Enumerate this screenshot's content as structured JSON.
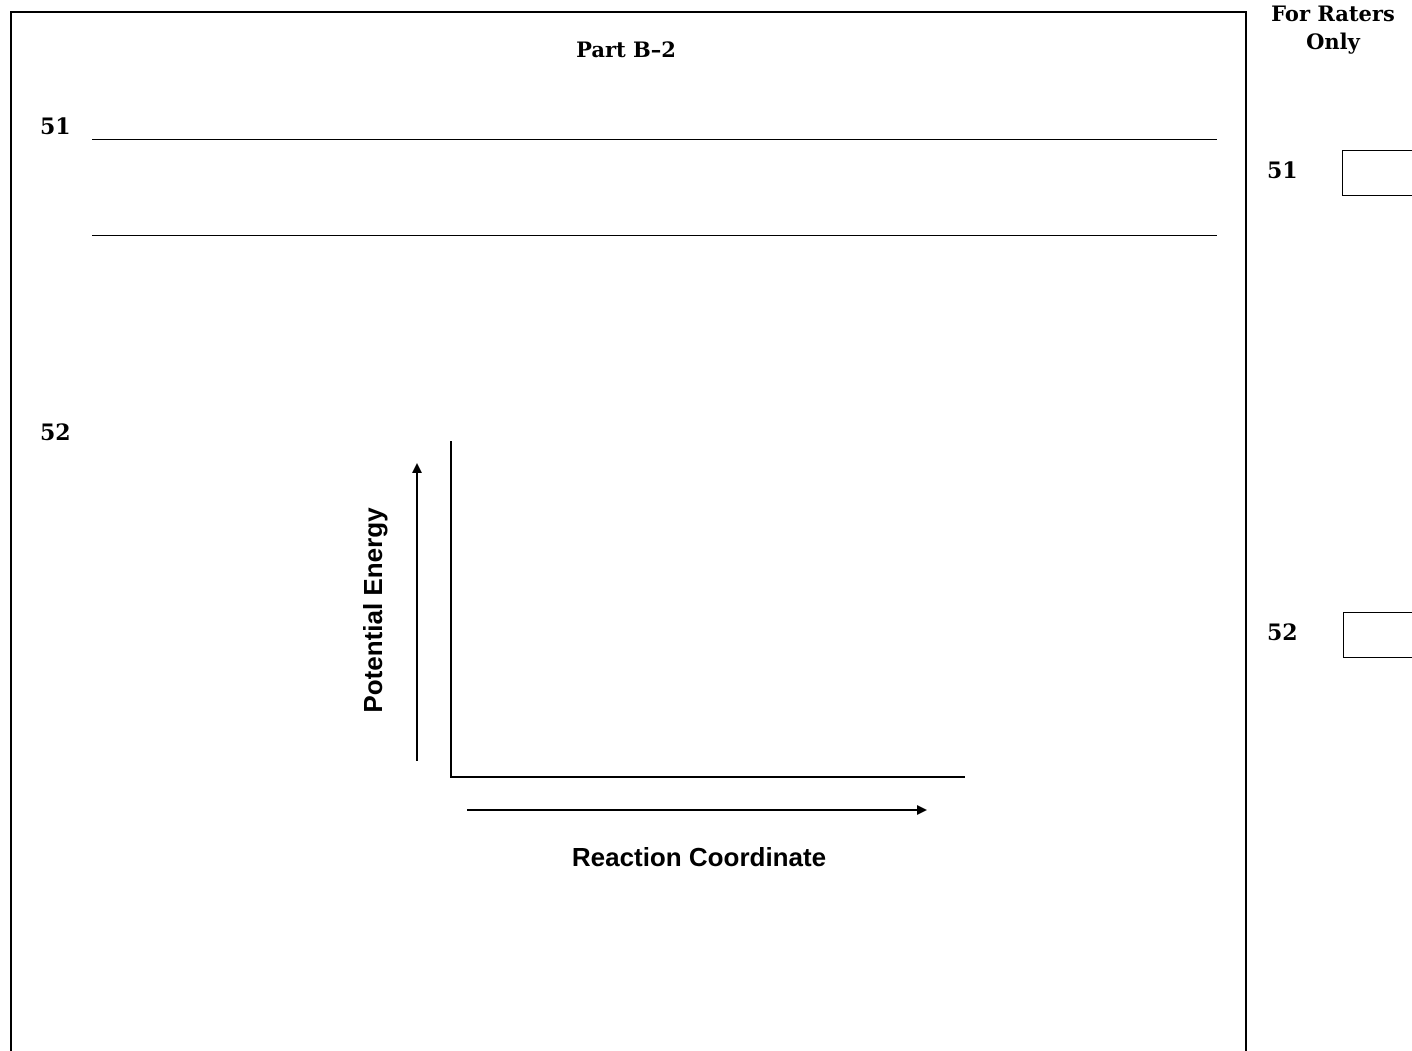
{
  "part_title": "Part B–2",
  "raters": {
    "line1": "For Raters",
    "line2": "Only"
  },
  "questions": [
    {
      "number": "51",
      "rater_number": "51"
    },
    {
      "number": "52",
      "rater_number": "52"
    }
  ],
  "graph": {
    "y_label": "Potential Energy",
    "x_label": "Reaction Coordinate"
  }
}
